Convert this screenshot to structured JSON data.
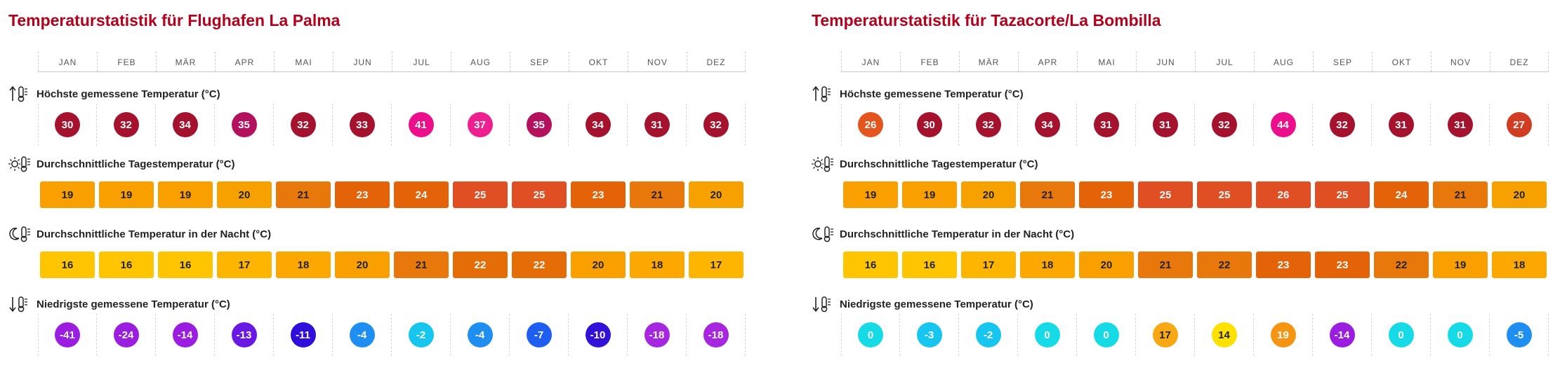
{
  "months": [
    "JAN",
    "FEB",
    "MÄR",
    "APR",
    "MAI",
    "JUN",
    "JUL",
    "AUG",
    "SEP",
    "OKT",
    "NOV",
    "DEZ"
  ],
  "panels": [
    {
      "title": "Temperaturstatistik für Flughafen La Palma",
      "rows": [
        {
          "label": "Höchste gemessene Temperatur (°C)",
          "icon": "thermometer-up-icon",
          "kind": "circle",
          "values": [
            "30",
            "32",
            "34",
            "35",
            "32",
            "33",
            "41",
            "37",
            "35",
            "34",
            "31",
            "32"
          ],
          "colors": [
            "#a5122d",
            "#a5122d",
            "#a5122d",
            "#b3105e",
            "#a5122d",
            "#a5122d",
            "#ec0f8c",
            "#ee1f8f",
            "#b3105e",
            "#a5122d",
            "#a5122d",
            "#a5122d"
          ]
        },
        {
          "label": "Durchschnittliche Tagestemperatur (°C)",
          "icon": "sun-thermometer-icon",
          "kind": "box",
          "values": [
            "19",
            "19",
            "19",
            "20",
            "21",
            "23",
            "24",
            "25",
            "25",
            "23",
            "21",
            "20"
          ],
          "colors": [
            "#f99f00",
            "#f99f00",
            "#f99f00",
            "#f7a100",
            "#e8780c",
            "#e46208",
            "#e46208",
            "#df4f23",
            "#df4f23",
            "#e46208",
            "#e8780c",
            "#f7a100"
          ]
        },
        {
          "label": "Durchschnittliche Temperatur in der Nacht (°C)",
          "icon": "moon-thermometer-icon",
          "kind": "box",
          "values": [
            "16",
            "16",
            "16",
            "17",
            "18",
            "20",
            "21",
            "22",
            "22",
            "20",
            "18",
            "17"
          ],
          "colors": [
            "#fec500",
            "#fec500",
            "#fec500",
            "#fdb500",
            "#fca800",
            "#f99f00",
            "#e8780c",
            "#e46d08",
            "#e46d08",
            "#f99f00",
            "#fca800",
            "#fdb500"
          ]
        },
        {
          "label": "Niedrigste gemessene Temperatur (°C)",
          "icon": "thermometer-down-icon",
          "kind": "circle",
          "values": [
            "-41",
            "-24",
            "-14",
            "-13",
            "-11",
            "-4",
            "-2",
            "-4",
            "-7",
            "-10",
            "-18",
            "-18"
          ],
          "colors": [
            "#9b1de0",
            "#9b1de0",
            "#9b1de0",
            "#6a18e3",
            "#2f0fd9",
            "#1e8ef0",
            "#16c6ef",
            "#1e8ef0",
            "#1e5ef0",
            "#3311d9",
            "#a726df",
            "#a726df"
          ]
        }
      ]
    },
    {
      "title": "Temperaturstatistik für Tazacorte/La Bombilla",
      "rows": [
        {
          "label": "Höchste gemessene Temperatur (°C)",
          "icon": "thermometer-up-icon",
          "kind": "circle",
          "values": [
            "26",
            "30",
            "32",
            "34",
            "31",
            "31",
            "32",
            "44",
            "32",
            "31",
            "31",
            "27"
          ],
          "colors": [
            "#e4541d",
            "#a5122d",
            "#a5122d",
            "#a5122d",
            "#a5122d",
            "#a5122d",
            "#a5122d",
            "#ec0f8c",
            "#a5122d",
            "#a5122d",
            "#a5122d",
            "#d03d22"
          ]
        },
        {
          "label": "Durchschnittliche Tagestemperatur (°C)",
          "icon": "sun-thermometer-icon",
          "kind": "box",
          "values": [
            "19",
            "19",
            "20",
            "21",
            "23",
            "25",
            "25",
            "26",
            "25",
            "24",
            "21",
            "20"
          ],
          "colors": [
            "#f99f00",
            "#f99f00",
            "#f7a100",
            "#e8780c",
            "#e46208",
            "#df4f23",
            "#df4f23",
            "#df4f23",
            "#df4f23",
            "#e46208",
            "#e8780c",
            "#f7a100"
          ]
        },
        {
          "label": "Durchschnittliche Temperatur in der Nacht (°C)",
          "icon": "moon-thermometer-icon",
          "kind": "box",
          "values": [
            "16",
            "16",
            "17",
            "18",
            "20",
            "21",
            "22",
            "23",
            "23",
            "22",
            "19",
            "18"
          ],
          "colors": [
            "#fec500",
            "#fec500",
            "#fdb500",
            "#fca800",
            "#f99f00",
            "#e8780c",
            "#e8780c",
            "#e46208",
            "#e46208",
            "#e8780c",
            "#fa9f00",
            "#fca800"
          ]
        },
        {
          "label": "Niedrigste gemessene Temperatur (°C)",
          "icon": "thermometer-down-icon",
          "kind": "circle",
          "values": [
            "0",
            "-3",
            "-2",
            "0",
            "0",
            "17",
            "14",
            "19",
            "-14",
            "0",
            "0",
            "-5"
          ],
          "colors": [
            "#16dbe6",
            "#16c6ef",
            "#16c6ef",
            "#16dbe6",
            "#16dbe6",
            "#f7a812",
            "#fde100",
            "#f59513",
            "#9b1de0",
            "#16dbe6",
            "#16dbe6",
            "#1e8ef0"
          ]
        }
      ]
    }
  ]
}
